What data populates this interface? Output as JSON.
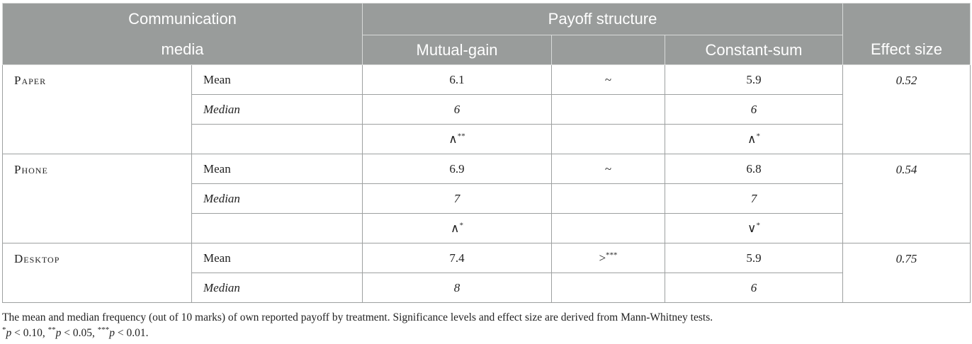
{
  "header": {
    "media_line1": "Communication",
    "media_line2": "media",
    "payoff_structure": "Payoff structure",
    "mutual_gain": "Mutual-gain",
    "constant_sum": "Constant-sum",
    "effect_size": "Effect size"
  },
  "groups": [
    {
      "name": "Paper",
      "mean_label": "Mean",
      "median_label": "Median",
      "mutual_mean": "6.1",
      "compare_mean": "~",
      "constant_mean": "5.9",
      "mutual_median": "6",
      "constant_median": "6",
      "mutual_cmp_symbol": "∧",
      "mutual_cmp_sig": "**",
      "constant_cmp_symbol": "∧",
      "constant_cmp_sig": "*",
      "effect": "0.52"
    },
    {
      "name": "Phone",
      "mean_label": "Mean",
      "median_label": "Median",
      "mutual_mean": "6.9",
      "compare_mean": "~",
      "constant_mean": "6.8",
      "mutual_median": "7",
      "constant_median": "7",
      "mutual_cmp_symbol": "∧",
      "mutual_cmp_sig": "*",
      "constant_cmp_symbol": "∨",
      "constant_cmp_sig": "*",
      "effect": "0.54"
    },
    {
      "name": "Desktop",
      "mean_label": "Mean",
      "median_label": "Median",
      "mutual_mean": "7.4",
      "compare_mean": ">",
      "compare_mean_sig": "***",
      "constant_mean": "5.9",
      "mutual_median": "8",
      "constant_median": "6",
      "effect": "0.75"
    }
  ],
  "notes": {
    "caption": "The mean and median frequency (out of 10 marks) of own reported payoff by treatment. Significance levels and effect size are derived from Mann-Whitney tests.",
    "sig1_star": "*",
    "sig1_text": " < 0.10, ",
    "sig2_star": "**",
    "sig2_text": " < 0.05, ",
    "sig3_star": "***",
    "sig3_text": " < 0.01.",
    "p_symbol": "p"
  }
}
